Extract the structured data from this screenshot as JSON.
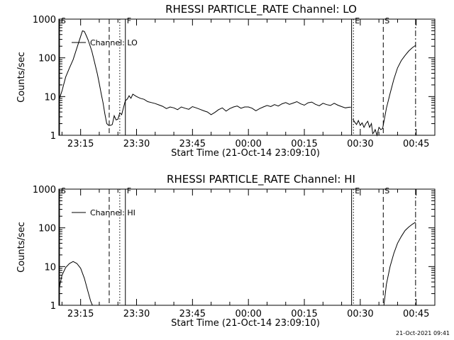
{
  "timestamp": "21-Oct-2021 09:41",
  "chart_data": [
    {
      "type": "line",
      "title": "RHESSI PARTICLE_RATE Channel: LO",
      "xlabel": "Start Time (21-Oct-14 23:09:10)",
      "ylabel": "Counts/sec",
      "yscale": "log",
      "ylim": [
        1,
        1000
      ],
      "xlim": [
        "23:09:10",
        "00:50:00"
      ],
      "x_ticks": [
        "23:15",
        "23:30",
        "23:45",
        "00:00",
        "00:15",
        "00:30",
        "00:45"
      ],
      "y_ticks": [
        "1",
        "10",
        "100",
        "1000"
      ],
      "legend": {
        "entry": "Channel: LO",
        "position": "top-left"
      },
      "markers": [
        {
          "label": "S",
          "time": "23:09:20",
          "style": "solid"
        },
        {
          "label": "",
          "time": "23:22:40",
          "style": "dashed"
        },
        {
          "label": "",
          "time": "23:25:30",
          "style": "dotted"
        },
        {
          "label": "F",
          "time": "23:27:00",
          "style": "solid"
        },
        {
          "label": "",
          "time": "00:27:40",
          "style": "solid"
        },
        {
          "label": "E",
          "time": "00:28:10",
          "style": "dotted"
        },
        {
          "label": "S",
          "time": "00:36:10",
          "style": "dashed"
        },
        {
          "label": "",
          "time": "00:44:50",
          "style": "dashdot"
        }
      ],
      "segments": [
        {
          "x": [
            "23:09:10",
            "23:10:00",
            "23:11:00",
            "23:12:00",
            "23:13:00",
            "23:14:00",
            "23:15:00",
            "23:15:30",
            "23:16:00",
            "23:16:30",
            "23:17:00",
            "23:17:30",
            "23:18:00",
            "23:18:30",
            "23:19:00",
            "23:19:30",
            "23:20:00",
            "23:20:30",
            "23:21:00",
            "23:21:30",
            "23:22:00",
            "23:22:30",
            "23:23:00",
            "23:23:30",
            "23:24:00",
            "23:24:30",
            "23:25:00",
            "23:25:30",
            "23:26:00",
            "23:26:30",
            "23:27:00",
            "23:27:30",
            "23:28:00",
            "23:28:30",
            "23:29:00",
            "23:30:00",
            "23:31:00",
            "23:32:00",
            "23:33:00",
            "23:34:00",
            "23:35:00",
            "23:36:00",
            "23:37:00",
            "23:38:00",
            "23:39:00",
            "23:40:00",
            "23:41:00",
            "23:42:00",
            "23:43:00",
            "23:44:00",
            "23:45:00",
            "23:46:00",
            "23:47:00",
            "23:48:00",
            "23:49:00",
            "23:50:00",
            "23:51:00",
            "23:52:00",
            "23:53:00",
            "23:54:00",
            "23:55:00",
            "23:56:00",
            "23:57:00",
            "23:58:00",
            "23:59:00",
            "00:00:00",
            "00:01:00",
            "00:02:00",
            "00:03:00",
            "00:04:00",
            "00:05:00",
            "00:06:00",
            "00:07:00",
            "00:08:00",
            "00:09:00",
            "00:10:00",
            "00:11:00",
            "00:12:00",
            "00:13:00",
            "00:14:00",
            "00:15:00",
            "00:16:00",
            "00:17:00",
            "00:18:00",
            "00:19:00",
            "00:20:00",
            "00:21:00",
            "00:22:00",
            "00:23:00",
            "00:24:00",
            "00:25:00",
            "00:26:00",
            "00:27:00",
            "00:27:30"
          ],
          "y": [
            8,
            14,
            32,
            55,
            90,
            180,
            360,
            500,
            480,
            380,
            290,
            210,
            150,
            95,
            60,
            38,
            22,
            12,
            7,
            3.6,
            2.0,
            1.8,
            1.8,
            1.9,
            3.2,
            2.5,
            2.6,
            3.8,
            3.4,
            5.2,
            7.8,
            8.6,
            10.5,
            9.0,
            11.5,
            10.0,
            9.0,
            8.5,
            7.4,
            7.0,
            6.6,
            6.1,
            5.6,
            4.9,
            5.4,
            5.1,
            4.6,
            5.4,
            5.0,
            4.7,
            5.5,
            5.1,
            4.7,
            4.3,
            4.0,
            3.4,
            3.9,
            4.6,
            5.1,
            4.2,
            4.9,
            5.4,
            5.7,
            5.0,
            5.4,
            5.4,
            5.0,
            4.3,
            4.9,
            5.4,
            5.9,
            5.5,
            6.2,
            5.7,
            6.5,
            7.0,
            6.3,
            6.8,
            7.4,
            6.5,
            6.0,
            6.9,
            7.2,
            6.3,
            5.8,
            6.7,
            6.2,
            5.9,
            6.7,
            6.0,
            5.5,
            5.1,
            5.3,
            5.3
          ]
        },
        {
          "x": [
            "00:28:00",
            "00:28:30",
            "00:29:00",
            "00:29:30",
            "00:30:00",
            "00:30:30",
            "00:31:00",
            "00:31:30",
            "00:32:00",
            "00:32:30",
            "00:33:00",
            "00:33:20",
            "00:33:40",
            "00:34:00",
            "00:34:30",
            "00:35:00",
            "00:35:30",
            "00:36:00",
            "00:37:00",
            "00:38:00",
            "00:39:00",
            "00:40:00",
            "00:41:00",
            "00:42:00",
            "00:43:00",
            "00:44:00",
            "00:44:50"
          ],
          "y": [
            2.6,
            2.2,
            1.9,
            2.4,
            1.8,
            2.1,
            1.6,
            2.0,
            2.3,
            1.6,
            2.0,
            1.1,
            1.2,
            1.4,
            1.0,
            1.6,
            1.4,
            1.5,
            5,
            12,
            28,
            55,
            85,
            115,
            150,
            185,
            210
          ]
        }
      ]
    },
    {
      "type": "line",
      "title": "RHESSI PARTICLE_RATE Channel: HI",
      "xlabel": "Start Time (21-Oct-14 23:09:10)",
      "ylabel": "Counts/sec",
      "yscale": "log",
      "ylim": [
        1,
        1000
      ],
      "xlim": [
        "23:09:10",
        "00:50:00"
      ],
      "x_ticks": [
        "23:15",
        "23:30",
        "23:45",
        "00:00",
        "00:15",
        "00:30",
        "00:45"
      ],
      "y_ticks": [
        "1",
        "10",
        "100",
        "1000"
      ],
      "legend": {
        "entry": "Channel: HI",
        "position": "top-left"
      },
      "markers": [
        {
          "label": "S",
          "time": "23:09:20",
          "style": "solid"
        },
        {
          "label": "",
          "time": "23:22:40",
          "style": "dashed"
        },
        {
          "label": "",
          "time": "23:25:30",
          "style": "dotted"
        },
        {
          "label": "F",
          "time": "23:27:00",
          "style": "solid"
        },
        {
          "label": "",
          "time": "00:27:40",
          "style": "solid"
        },
        {
          "label": "E",
          "time": "00:28:10",
          "style": "dotted"
        },
        {
          "label": "S",
          "time": "00:36:10",
          "style": "dashed"
        },
        {
          "label": "",
          "time": "00:44:50",
          "style": "dashdot"
        }
      ],
      "segments": [
        {
          "x": [
            "23:09:20",
            "23:10:00",
            "23:11:00",
            "23:12:00",
            "23:13:00",
            "23:14:00",
            "23:15:00",
            "23:16:00",
            "23:17:00",
            "23:17:40",
            "23:18:10"
          ],
          "y": [
            3.0,
            6.0,
            9.5,
            12.0,
            13.5,
            12.0,
            9.0,
            5.0,
            2.2,
            1.3,
            1.0
          ]
        },
        {
          "x": [
            "00:36:20",
            "00:37:00",
            "00:38:00",
            "00:39:00",
            "00:40:00",
            "00:41:00",
            "00:42:00",
            "00:43:00",
            "00:44:00",
            "00:44:50"
          ],
          "y": [
            1.0,
            3.5,
            10,
            22,
            40,
            60,
            85,
            105,
            125,
            140
          ]
        }
      ]
    }
  ]
}
